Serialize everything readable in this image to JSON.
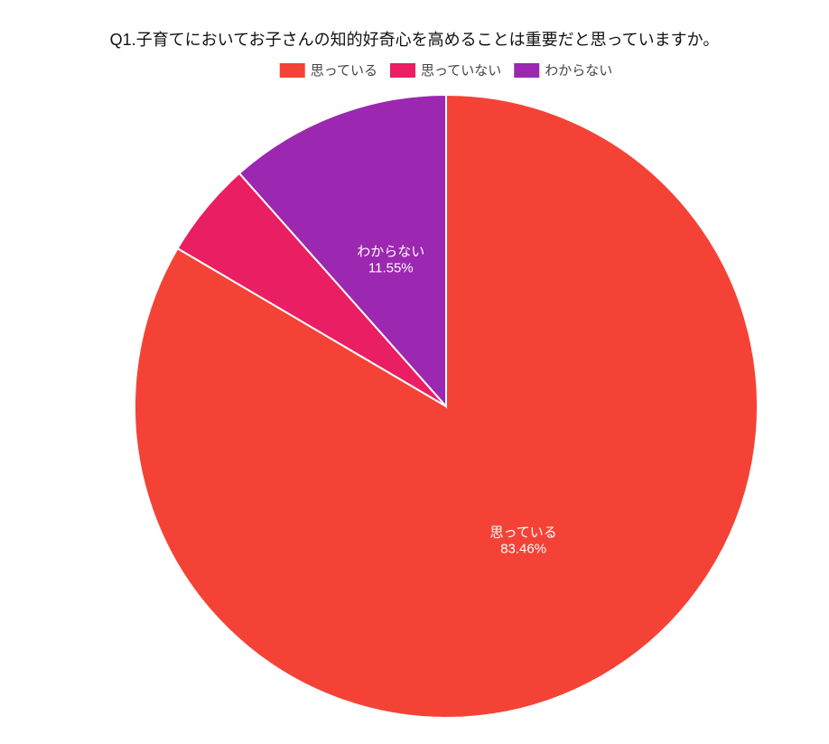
{
  "chart_data": {
    "type": "pie",
    "title": "Q1.子育てにおいてお子さんの知的好奇心を高めることは重要だと思っていますか。",
    "categories": [
      "思っている",
      "思っていない",
      "わからない"
    ],
    "values": [
      83.46,
      4.99,
      11.55
    ],
    "value_labels": [
      "83.46%",
      null,
      "11.55%"
    ],
    "colors": [
      "#f44336",
      "#e91e63",
      "#9c27b0"
    ],
    "legend": "top"
  }
}
